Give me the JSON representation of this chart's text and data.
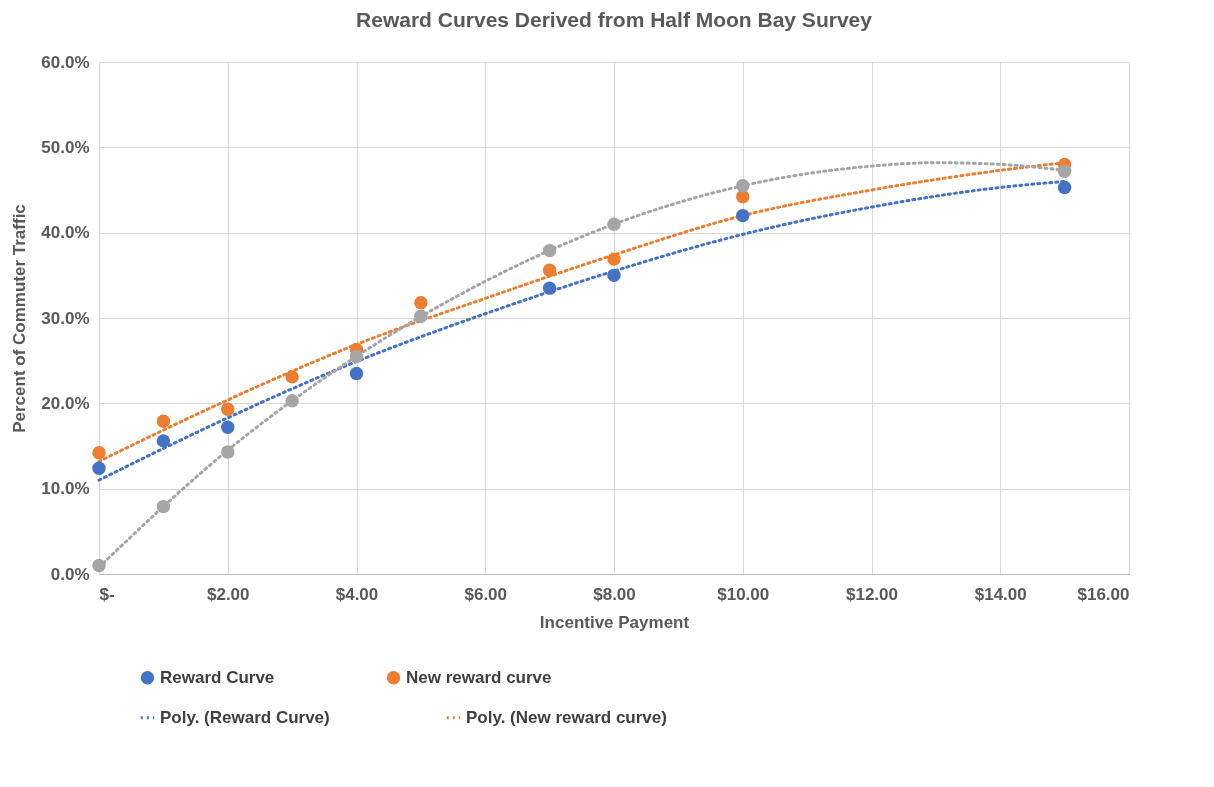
{
  "chart_data": {
    "type": "scatter",
    "title": "Reward Curves Derived from Half Moon Bay Survey",
    "xlabel": "Incentive Payment",
    "ylabel": "Percent of Commuter Traffic",
    "x": [
      0,
      1,
      2,
      3,
      4,
      5,
      7,
      8,
      10,
      15
    ],
    "xlim": [
      0,
      16
    ],
    "xticks": [
      {
        "value": 0,
        "label": "$-"
      },
      {
        "value": 2,
        "label": "$2.00"
      },
      {
        "value": 4,
        "label": "$4.00"
      },
      {
        "value": 6,
        "label": "$6.00"
      },
      {
        "value": 8,
        "label": "$8.00"
      },
      {
        "value": 10,
        "label": "$10.00"
      },
      {
        "value": 12,
        "label": "$12.00"
      },
      {
        "value": 14,
        "label": "$14.00"
      },
      {
        "value": 16,
        "label": "$16.00"
      }
    ],
    "ylim": [
      0,
      60
    ],
    "yticks": [
      {
        "value": 0,
        "label": "0.0%"
      },
      {
        "value": 10,
        "label": "10.0%"
      },
      {
        "value": 20,
        "label": "20.0%"
      },
      {
        "value": 30,
        "label": "30.0%"
      },
      {
        "value": 40,
        "label": "40.0%"
      },
      {
        "value": 50,
        "label": "50.0%"
      },
      {
        "value": 60,
        "label": "60.0%"
      }
    ],
    "grid": true,
    "legend": "bottom",
    "series": [
      {
        "name": "Reward Curve",
        "marker": "circle",
        "color": "#4472c4",
        "values": [
          12.4,
          15.6,
          17.2,
          null,
          23.5,
          null,
          33.5,
          35.0,
          42.0,
          45.3
        ]
      },
      {
        "name": "New reward curve",
        "marker": "circle",
        "color": "#ed7d31",
        "values": [
          14.2,
          17.9,
          19.3,
          23.1,
          26.3,
          31.8,
          35.6,
          36.9,
          44.2,
          48.0
        ]
      },
      {
        "marker": "circle",
        "color": "#a5a5a5",
        "values": [
          1.0,
          7.9,
          14.3,
          20.3,
          25.5,
          30.2,
          37.9,
          41.0,
          45.5,
          47.2
        ]
      },
      {
        "name": "Poly. (Reward Curve)",
        "type": "line",
        "line_style": "dotted",
        "color": "#4472c4",
        "x": [
          0,
          2,
          4,
          6,
          8,
          10,
          12,
          14,
          15
        ],
        "values": [
          11.0,
          18.3,
          24.9,
          30.5,
          35.5,
          39.8,
          43.0,
          45.3,
          46.0
        ]
      },
      {
        "name": "Poly. (New reward curve)",
        "type": "line",
        "line_style": "dotted",
        "color": "#ed7d31",
        "x": [
          0,
          2,
          4,
          6,
          8,
          10,
          12,
          14,
          15
        ],
        "values": [
          13.2,
          20.4,
          26.9,
          32.3,
          37.4,
          42.0,
          45.0,
          47.3,
          48.2
        ]
      },
      {
        "type": "line",
        "line_style": "dotted",
        "color": "#a5a5a5",
        "x": [
          0,
          2,
          4,
          6,
          8,
          10,
          12,
          13,
          14,
          15
        ],
        "values": [
          0.8,
          14.5,
          25.5,
          34.3,
          41.0,
          45.5,
          47.8,
          48.2,
          48.0,
          47.3
        ]
      }
    ]
  }
}
